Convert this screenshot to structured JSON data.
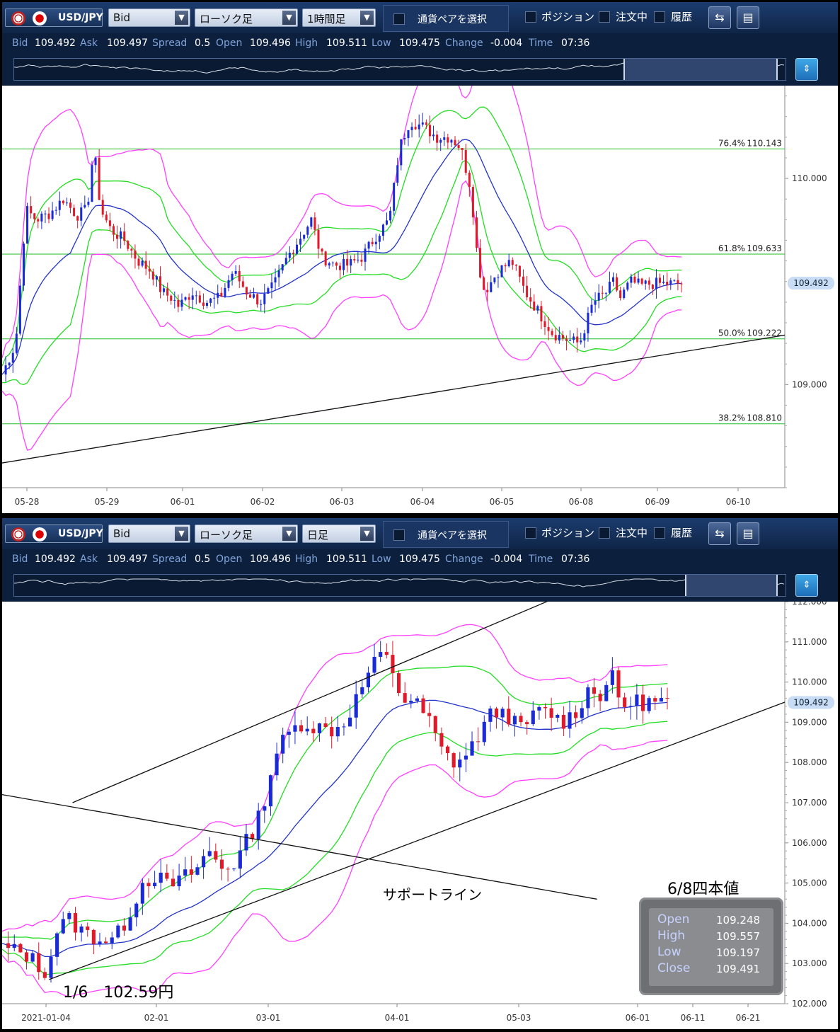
{
  "panels": [
    {
      "id": "p1",
      "toolbar": {
        "pair": "USD/JPY",
        "price_type": "Bid",
        "chart_type": "ローソク足",
        "timeframe": "1時間足",
        "select_pair_label": "通貨ペアを選択",
        "position_label": "ポジション",
        "order_label": "注文中",
        "history_label": "履歴"
      },
      "quote": {
        "bid_label": "Bid",
        "bid": "109.492",
        "ask_label": "Ask",
        "ask": "109.497",
        "spread_label": "Spread",
        "spread": "0.5",
        "open_label": "Open",
        "open": "109.496",
        "high_label": "High",
        "high": "109.511",
        "low_label": "Low",
        "low": "109.475",
        "change_label": "Change",
        "change": "-0.004",
        "time_label": "Time",
        "time": "07:36"
      },
      "navigator": {
        "window_start": 0.79,
        "window_end": 0.99
      }
    },
    {
      "id": "p2",
      "toolbar": {
        "pair": "USD/JPY",
        "price_type": "Bid",
        "chart_type": "ローソク足",
        "timeframe": "日足",
        "select_pair_label": "通貨ペアを選択",
        "position_label": "ポジション",
        "order_label": "注文中",
        "history_label": "履歴"
      },
      "quote": {
        "bid_label": "Bid",
        "bid": "109.492",
        "ask_label": "Ask",
        "ask": "109.497",
        "spread_label": "Spread",
        "spread": "0.5",
        "open_label": "Open",
        "open": "109.496",
        "high_label": "High",
        "high": "109.511",
        "low_label": "Low",
        "low": "109.475",
        "change_label": "Change",
        "change": "-0.004",
        "time_label": "Time",
        "time": "07:36"
      },
      "navigator": {
        "window_start": 0.87,
        "window_end": 0.99
      }
    }
  ],
  "chart_data": [
    {
      "type": "candlestick",
      "title": "",
      "timeframe": "1時間足",
      "x_ticks": [
        "05-28",
        "05-29",
        "06-01",
        "06-02",
        "06-03",
        "06-04",
        "06-05",
        "06-08",
        "06-09",
        "06-10"
      ],
      "y_ticks": [
        "109.000",
        "110.000"
      ],
      "ylim": [
        108.5,
        110.45
      ],
      "current_price": "109.492",
      "current_price_value": 109.492,
      "fibonacci": [
        {
          "label": "76.4%",
          "value_text": "110.143",
          "value": 110.143
        },
        {
          "label": "61.8%",
          "value_text": "109.633",
          "value": 109.633
        },
        {
          "label": "50.0%",
          "value_text": "109.222",
          "value": 109.222
        },
        {
          "label": "38.2%",
          "value_text": "108.810",
          "value": 108.81
        }
      ],
      "trendline": {
        "x": [
          0,
          1.0
        ],
        "y": [
          108.62,
          109.24
        ]
      },
      "close_path": [
        [
          0.0,
          109.05
        ],
        [
          0.02,
          109.2
        ],
        [
          0.035,
          109.85
        ],
        [
          0.05,
          109.8
        ],
        [
          0.07,
          109.83
        ],
        [
          0.09,
          109.9
        ],
        [
          0.11,
          109.82
        ],
        [
          0.125,
          109.85
        ],
        [
          0.135,
          110.15
        ],
        [
          0.145,
          109.85
        ],
        [
          0.16,
          109.75
        ],
        [
          0.18,
          109.7
        ],
        [
          0.2,
          109.6
        ],
        [
          0.22,
          109.55
        ],
        [
          0.235,
          109.45
        ],
        [
          0.25,
          109.42
        ],
        [
          0.26,
          109.38
        ],
        [
          0.28,
          109.45
        ],
        [
          0.3,
          109.4
        ],
        [
          0.32,
          109.42
        ],
        [
          0.34,
          109.55
        ],
        [
          0.36,
          109.45
        ],
        [
          0.38,
          109.4
        ],
        [
          0.4,
          109.48
        ],
        [
          0.42,
          109.62
        ],
        [
          0.44,
          109.72
        ],
        [
          0.455,
          109.8
        ],
        [
          0.47,
          109.62
        ],
        [
          0.49,
          109.58
        ],
        [
          0.51,
          109.58
        ],
        [
          0.53,
          109.62
        ],
        [
          0.55,
          109.72
        ],
        [
          0.57,
          109.8
        ],
        [
          0.585,
          110.15
        ],
        [
          0.6,
          110.28
        ],
        [
          0.62,
          110.25
        ],
        [
          0.64,
          110.2
        ],
        [
          0.66,
          110.2
        ],
        [
          0.675,
          110.15
        ],
        [
          0.69,
          109.95
        ],
        [
          0.7,
          109.6
        ],
        [
          0.71,
          109.45
        ],
        [
          0.73,
          109.55
        ],
        [
          0.75,
          109.6
        ],
        [
          0.77,
          109.45
        ],
        [
          0.79,
          109.35
        ],
        [
          0.81,
          109.25
        ],
        [
          0.83,
          109.22
        ],
        [
          0.85,
          109.2
        ],
        [
          0.86,
          109.3
        ],
        [
          0.87,
          109.4
        ],
        [
          0.89,
          109.45
        ],
        [
          0.9,
          109.5
        ],
        [
          0.91,
          109.42
        ],
        [
          0.925,
          109.5
        ],
        [
          0.94,
          109.48
        ],
        [
          0.955,
          109.49
        ]
      ]
    },
    {
      "type": "candlestick",
      "title": "",
      "timeframe": "日足",
      "x_ticks": [
        "2021-01-04",
        "02-01",
        "03-01",
        "04-01",
        "05-03",
        "06-01",
        "06-11",
        "06-21"
      ],
      "y_ticks": [
        "102.000",
        "103.000",
        "104.000",
        "105.000",
        "106.000",
        "107.000",
        "108.000",
        "109.000",
        "110.000",
        "111.000",
        "112.000"
      ],
      "ylim": [
        102.0,
        112.0
      ],
      "current_price": "109.492",
      "current_price_value": 109.492,
      "annotations": [
        {
          "text": "1/6　102.59円"
        },
        {
          "text": "サポートライン"
        },
        {
          "text": "6/8四本値"
        }
      ],
      "ohlc_box": {
        "labels": [
          "Open",
          "High",
          "Low",
          "Close"
        ],
        "values": [
          "109.248",
          "109.557",
          "109.197",
          "109.491"
        ]
      },
      "close_path": [
        [
          0.0,
          103.4
        ],
        [
          0.02,
          103.3
        ],
        [
          0.04,
          103.2
        ],
        [
          0.06,
          102.8
        ],
        [
          0.07,
          102.9
        ],
        [
          0.08,
          103.8
        ],
        [
          0.1,
          104.1
        ],
        [
          0.12,
          103.8
        ],
        [
          0.15,
          103.6
        ],
        [
          0.17,
          103.6
        ],
        [
          0.19,
          104.2
        ],
        [
          0.21,
          105.0
        ],
        [
          0.23,
          105.2
        ],
        [
          0.25,
          104.9
        ],
        [
          0.27,
          105.1
        ],
        [
          0.29,
          105.3
        ],
        [
          0.31,
          105.8
        ],
        [
          0.33,
          105.4
        ],
        [
          0.35,
          105.5
        ],
        [
          0.37,
          106.1
        ],
        [
          0.39,
          106.8
        ],
        [
          0.41,
          108.2
        ],
        [
          0.43,
          108.7
        ],
        [
          0.45,
          109.0
        ],
        [
          0.47,
          108.9
        ],
        [
          0.49,
          108.8
        ],
        [
          0.51,
          108.9
        ],
        [
          0.53,
          109.5
        ],
        [
          0.55,
          110.2
        ],
        [
          0.57,
          110.7
        ],
        [
          0.585,
          110.4
        ],
        [
          0.6,
          109.6
        ],
        [
          0.62,
          109.5
        ],
        [
          0.64,
          109.1
        ],
        [
          0.66,
          108.3
        ],
        [
          0.68,
          108.0
        ],
        [
          0.7,
          108.2
        ],
        [
          0.72,
          108.8
        ],
        [
          0.74,
          109.3
        ],
        [
          0.76,
          109.2
        ],
        [
          0.78,
          108.8
        ],
        [
          0.8,
          109.2
        ],
        [
          0.82,
          109.3
        ],
        [
          0.84,
          109.0
        ],
        [
          0.86,
          109.2
        ],
        [
          0.88,
          109.8
        ],
        [
          0.9,
          109.7
        ],
        [
          0.915,
          110.2
        ],
        [
          0.93,
          109.4
        ],
        [
          0.945,
          109.5
        ]
      ],
      "trendlines": [
        {
          "name": "upper-channel",
          "x": [
            0.09,
            0.72
          ],
          "y": [
            107.0,
            112.2
          ]
        },
        {
          "name": "support-line",
          "x": [
            0.06,
            1.0
          ],
          "y": [
            102.6,
            109.5
          ]
        },
        {
          "name": "descending-line",
          "x": [
            0.0,
            0.76
          ],
          "y": [
            107.2,
            104.6
          ]
        }
      ]
    }
  ],
  "colors": {
    "bull": "#1a2bd6",
    "bear": "#e01a2a",
    "bb_outer": "#ff40ff",
    "bb_inner": "#22dd22",
    "ma": "#2233cc",
    "fib": "#22bb22",
    "trend": "#111111",
    "price_label": "#c9dcf5"
  }
}
